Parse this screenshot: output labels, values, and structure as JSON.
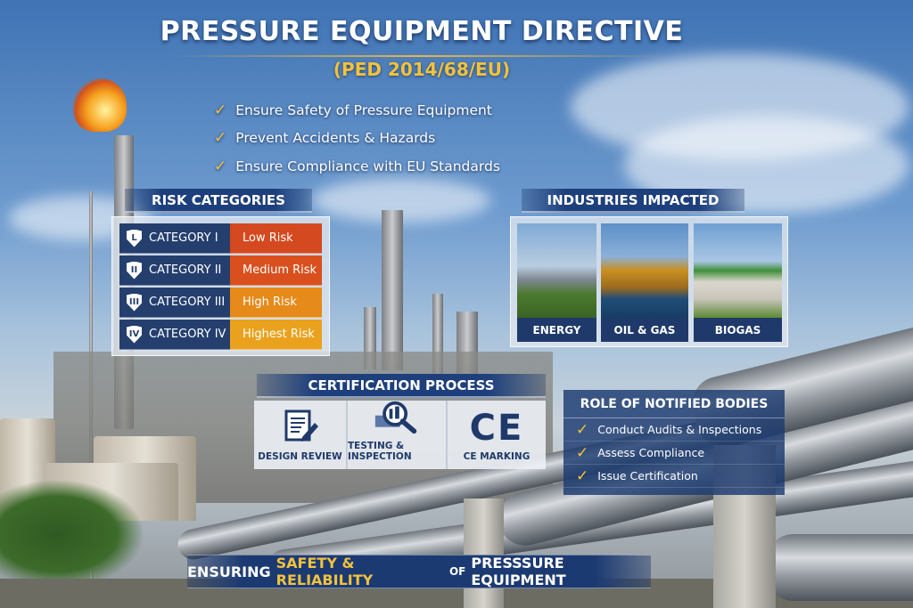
{
  "header": {
    "title": "PRESSURE EQUIPMENT DIRECTIVE",
    "subtitle": "(PED 2014/68/EU)"
  },
  "objectives": [
    "Ensure Safety of Pressure Equipment",
    "Prevent Accidents & Hazards",
    "Ensure Compliance with EU Standards"
  ],
  "risk": {
    "title": "RISK CATEGORIES",
    "rows": [
      {
        "badge": "L",
        "category": "CATEGORY I",
        "level": "Low Risk",
        "color": "#d4491f"
      },
      {
        "badge": "II",
        "category": "CATEGORY II",
        "level": "Medium Risk",
        "color": "#d9501e"
      },
      {
        "badge": "III",
        "category": "CATEGORY III",
        "level": "High Risk",
        "color": "#e68a1a"
      },
      {
        "badge": "IV",
        "category": "CATEGORY IV",
        "level": "Highest Risk",
        "color": "#eaa21e"
      }
    ]
  },
  "industries": {
    "title": "INDUSTRIES IMPACTED",
    "items": [
      {
        "label": "ENERGY"
      },
      {
        "label": "OIL & GAS"
      },
      {
        "label": "BIOGAS"
      }
    ]
  },
  "certification": {
    "title": "CERTIFICATION PROCESS",
    "steps": [
      {
        "label": "DESIGN REVIEW",
        "icon": "document-pen-icon"
      },
      {
        "label": "TESTING & INSPECTION",
        "icon": "magnifier-icon"
      },
      {
        "label": "CE MARKING",
        "icon": "ce-mark-icon",
        "mark": "CE"
      }
    ]
  },
  "roles": {
    "title": "ROLE OF NOTIFIED BODIES",
    "items": [
      "Conduct Audits & Inspections",
      "Assess Compliance",
      "Issue Certification"
    ]
  },
  "banner": {
    "part1": "ENSURING",
    "highlight": "SAFETY & RELIABILITY",
    "part2": "OF",
    "part3": "PRESSSURE EQUIPMENT"
  },
  "colors": {
    "navy": "#1f3a6a",
    "gold": "#f2c23d"
  }
}
